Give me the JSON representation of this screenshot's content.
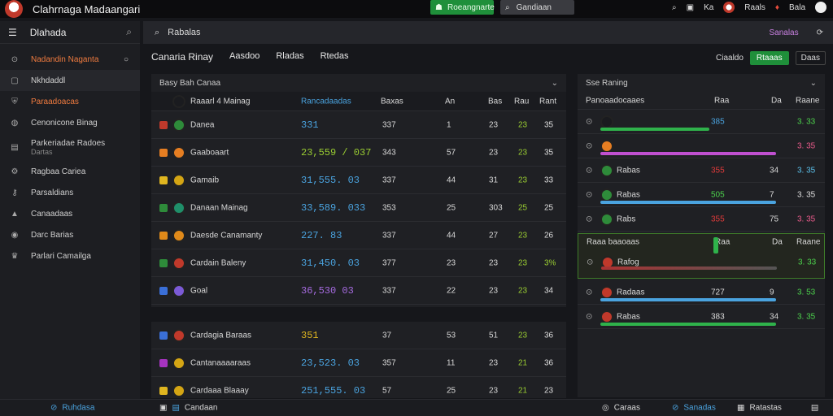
{
  "app": {
    "title": "Clahrnaga Madaangari"
  },
  "top": {
    "green_button": "Roeangnarte",
    "search_text": "Gandiaan",
    "right_items": [
      "Ka",
      "Raals",
      "Bala"
    ]
  },
  "sidebar": {
    "header": "Dlahada",
    "items": [
      {
        "icon": "compass-icon",
        "label": "Nadandin Naganta",
        "style": "orange"
      },
      {
        "icon": "square-icon",
        "label": "Nkhdaddl",
        "style": "active"
      },
      {
        "icon": "shield-icon",
        "label": "Paraadoacas",
        "style": "orange"
      },
      {
        "icon": "globe-icon",
        "label": "Cenonicone Binag",
        "style": ""
      },
      {
        "icon": "doc-icon",
        "label": "Parkeriadae Radoes",
        "sub": "Dartas",
        "style": ""
      },
      {
        "icon": "gear-icon",
        "label": "Ragbaa Cariea",
        "style": ""
      },
      {
        "icon": "key-icon",
        "label": "Parsaldians",
        "style": ""
      },
      {
        "icon": "mountain-icon",
        "label": "Canaadaas",
        "style": ""
      },
      {
        "icon": "ball-icon",
        "label": "Darc Barias",
        "style": ""
      },
      {
        "icon": "trophy-icon",
        "label": "Parlari Camailga",
        "style": ""
      }
    ]
  },
  "topnav": {
    "search_label": "Rabalas",
    "right": [
      "Sanalas"
    ]
  },
  "tabs": [
    "Canaria Rinay",
    "Aasdoo",
    "Rladas",
    "Rtedas"
  ],
  "filters": {
    "plain": "Ciaaldo",
    "active": "Rtaaas",
    "outline": "Daas"
  },
  "left_panel": {
    "title": "Basy Bah Canaa",
    "columns": [
      "Raaarl 4 Mainag",
      "Rancadaadas",
      "Baxas",
      "An",
      "Bas",
      "Rau",
      "Rant"
    ],
    "rows": [
      {
        "name": "Danea",
        "odds": "331",
        "c1": "337",
        "c2": "1",
        "c3": "23",
        "c4": "23",
        "c5": "35",
        "color": "#2e8b3a",
        "sq": "#c0392b",
        "odds_color": "#4aa3df"
      },
      {
        "name": "Gaaboaart",
        "odds": "23,559 / 037",
        "c1": "343",
        "c2": "57",
        "c3": "23",
        "c4": "23",
        "c5": "35",
        "color": "#e67e22",
        "sq": "#e67e22",
        "odds_color": "#9acd32"
      },
      {
        "name": "Gamaib",
        "odds": "31,555. 03",
        "c1": "337",
        "c2": "44",
        "c3": "31",
        "c4": "23",
        "c5": "33",
        "color": "#d4a514",
        "sq": "#e0b620",
        "odds_color": "#4aa3df"
      },
      {
        "name": "Danaan Mainag",
        "odds": "33,589. 033",
        "c1": "353",
        "c2": "25",
        "c3": "303",
        "c4": "25",
        "c5": "25",
        "color": "#1f8f6a",
        "sq": "#2e8b3a",
        "odds_color": "#4aa3df"
      },
      {
        "name": "Daesde Canamanty",
        "odds": "227. 83",
        "c1": "337",
        "c2": "44",
        "c3": "27",
        "c4": "23",
        "c5": "26",
        "color": "#e08a1a",
        "sq": "#e08a1a",
        "odds_color": "#4aa3df"
      },
      {
        "name": "Cardain Baleny",
        "odds": "31,450. 03",
        "c1": "377",
        "c2": "23",
        "c3": "23",
        "c4": "23",
        "c5": "3%",
        "color": "#c0392b",
        "sq": "#2e8b3a",
        "odds_color": "#4aa3df"
      },
      {
        "name": "Goal",
        "odds": "36,530 03",
        "c1": "337",
        "c2": "22",
        "c3": "23",
        "c4": "23",
        "c5": "34",
        "color": "#7b5ad6",
        "sq": "#3a6fd8",
        "odds_color": "#a66be0"
      }
    ],
    "rows2": [
      {
        "name": "Cardagia Baraas",
        "odds": "351",
        "c1": "37",
        "c2": "53",
        "c3": "51",
        "c4": "23",
        "c5": "36",
        "color": "#c0392b",
        "sq": "#3a6fd8",
        "odds_color": "#e0b620"
      },
      {
        "name": "Cantanaaaaraas",
        "odds": "23,523. 03",
        "c1": "357",
        "c2": "11",
        "c3": "23",
        "c4": "21",
        "c5": "36",
        "color": "#d4a514",
        "sq": "#a633c0",
        "odds_color": "#4aa3df"
      },
      {
        "name": "Cardaaa Blaaay",
        "odds": "251,555. 03",
        "c1": "57",
        "c2": "25",
        "c3": "23",
        "c4": "21",
        "c5": "23",
        "color": "#d4a514",
        "sq": "#e0b620",
        "odds_color": "#4aa3df"
      }
    ]
  },
  "right_panel": {
    "title": "Sse Raning",
    "columns": [
      "Panoaadocaaes",
      "Raa",
      "Da",
      "Raane"
    ],
    "rows": [
      {
        "name": "",
        "val": "385",
        "right": "3. 33",
        "bar1": 0.62,
        "bar1_color": "#2fb24b",
        "bar2": 0.62,
        "bar2_color": "#4aa3df",
        "val_color": "#4aa3df",
        "right_color": "#4cd04c",
        "ico": "#1a1b1f"
      },
      {
        "name": "",
        "val": "",
        "right": "3. 35",
        "bar1": 1.0,
        "bar1_color": "#c050d0",
        "bar2": 0,
        "bar2_color": "",
        "val_color": "#ddd",
        "right_color": "#e85a8a",
        "ico": "#e67e22"
      },
      {
        "name": "Rabas",
        "val": "355",
        "mid": "34",
        "right": "3. 35",
        "bar1": 0,
        "bar1_color": "",
        "bar2": 0,
        "bar2_color": "",
        "val_color": "#e03a3a",
        "right_color": "#5bc0eb",
        "ico": "#2e8b3a"
      },
      {
        "name": "Rabas",
        "val": "505",
        "mid": "7",
        "right": "3. 35",
        "bar1": 1.0,
        "bar1_color": "#4aa3df",
        "bar2": 0,
        "bar2_color": "",
        "val_color": "#4cd04c",
        "right_color": "#ddd",
        "ico": "#2e8b3a"
      },
      {
        "name": "Rabs",
        "val": "355",
        "mid": "75",
        "right": "3. 35",
        "bar1": 0,
        "bar1_color": "",
        "bar2": 0,
        "bar2_color": "",
        "val_color": "#e03a3a",
        "right_color": "#e85a8a",
        "ico": "#2e8b3a"
      }
    ],
    "hl_columns": [
      "Raaa baaoaas",
      "Raa",
      "Da",
      "Raane"
    ],
    "hl_row": {
      "name": "Rafog",
      "right": "3. 33"
    },
    "rows2": [
      {
        "name": "Radaas",
        "val": "727",
        "mid": "9",
        "right": "3. 53",
        "bar_color": "#4aa3df",
        "ico": "#c0392b"
      },
      {
        "name": "Rabas",
        "val": "383",
        "mid": "34",
        "right": "3. 35",
        "bar_color": "#2fb24b",
        "ico": "#c0392b"
      }
    ]
  },
  "status": {
    "left": "Ruhdasa",
    "mid": "Candaan",
    "right1": "Caraas",
    "right2": "Sanadas",
    "right3": "Ratastas"
  },
  "colors": {
    "accent_green": "#1f8f3a",
    "bg": "#16171b",
    "panel": "#1f2024"
  }
}
